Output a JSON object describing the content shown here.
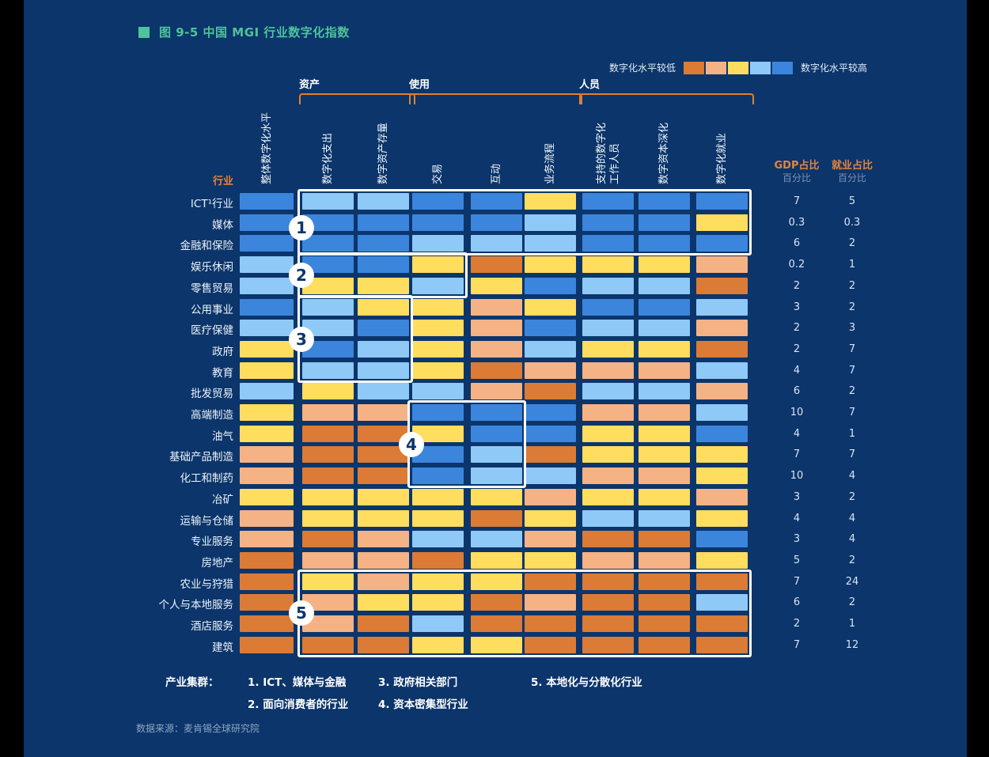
{
  "title": {
    "text": "图 9-5 中国 MGI 行业数字化指数"
  },
  "legend": {
    "low_label": "数字化水平较低",
    "high_label": "数字化水平较高",
    "scale_colors": [
      "#DB7B35",
      "#F5B285",
      "#FFDD5E",
      "#8FC9F7",
      "#3C85DC"
    ]
  },
  "columns": {
    "industries_label": "行业",
    "groups": [
      {
        "label": "资产",
        "cols": [
          2,
          3
        ]
      },
      {
        "label": "使用",
        "cols": [
          4,
          6
        ]
      },
      {
        "label": "人员",
        "cols": [
          7,
          9
        ]
      }
    ],
    "headers": [
      "整体数字化水平",
      "数字化支出",
      "数字资产存量",
      "交易",
      "互动",
      "业务流程",
      "支持的数字化\n工作人员",
      "数字资本深化",
      "数字化就业"
    ],
    "right_columns": [
      {
        "label": "GDP占比",
        "sublabel": "百分比"
      },
      {
        "label": "就业占比",
        "sublabel": "百分比"
      }
    ]
  },
  "chart_data": {
    "type": "heatmap",
    "title": "图 9-5 中国 MGI 行业数字化指数",
    "legend": "1 = 数字化水平较低(深橙) … 5 = 数字化水平较高(蓝)",
    "palette": {
      "1": "#DB7B35",
      "2": "#F5B285",
      "3": "#FFDD5E",
      "4": "#8FC9F7",
      "5": "#3C85DC"
    },
    "columns": [
      "整体数字化水平",
      "数字化支出",
      "数字资产存量",
      "交易",
      "互动",
      "业务流程",
      "支持的数字化工作人员",
      "数字资本深化",
      "数字化就业"
    ],
    "rows": [
      {
        "industry": "ICT¹行业",
        "values": [
          5,
          4,
          4,
          5,
          5,
          3,
          5,
          5,
          5
        ],
        "gdp_share": "7",
        "employment_share": "5"
      },
      {
        "industry": "媒体",
        "values": [
          5,
          5,
          5,
          5,
          5,
          4,
          5,
          5,
          3
        ],
        "gdp_share": "0.3",
        "employment_share": "0.3"
      },
      {
        "industry": "金融和保险",
        "values": [
          5,
          5,
          5,
          4,
          4,
          4,
          5,
          5,
          5
        ],
        "gdp_share": "6",
        "employment_share": "2"
      },
      {
        "industry": "娱乐休闲",
        "values": [
          4,
          5,
          5,
          3,
          1,
          3,
          3,
          3,
          2
        ],
        "gdp_share": "0.2",
        "employment_share": "1"
      },
      {
        "industry": "零售贸易",
        "values": [
          4,
          3,
          3,
          4,
          3,
          5,
          4,
          4,
          1
        ],
        "gdp_share": "2",
        "employment_share": "2"
      },
      {
        "industry": "公用事业",
        "values": [
          5,
          4,
          3,
          3,
          2,
          3,
          5,
          5,
          4
        ],
        "gdp_share": "3",
        "employment_share": "2"
      },
      {
        "industry": "医疗保健",
        "values": [
          4,
          4,
          5,
          3,
          2,
          5,
          4,
          4,
          2
        ],
        "gdp_share": "2",
        "employment_share": "3"
      },
      {
        "industry": "政府",
        "values": [
          3,
          5,
          4,
          3,
          2,
          4,
          3,
          3,
          1
        ],
        "gdp_share": "2",
        "employment_share": "7"
      },
      {
        "industry": "教育",
        "values": [
          3,
          4,
          4,
          3,
          1,
          2,
          2,
          2,
          4
        ],
        "gdp_share": "4",
        "employment_share": "7"
      },
      {
        "industry": "批发贸易",
        "values": [
          4,
          3,
          4,
          4,
          2,
          1,
          4,
          4,
          2
        ],
        "gdp_share": "6",
        "employment_share": "2"
      },
      {
        "industry": "高端制造",
        "values": [
          3,
          2,
          2,
          5,
          5,
          5,
          2,
          2,
          4
        ],
        "gdp_share": "10",
        "employment_share": "7"
      },
      {
        "industry": "油气",
        "values": [
          3,
          1,
          1,
          3,
          5,
          5,
          3,
          3,
          5
        ],
        "gdp_share": "4",
        "employment_share": "1"
      },
      {
        "industry": "基础产品制造",
        "values": [
          2,
          1,
          1,
          5,
          4,
          1,
          3,
          3,
          3
        ],
        "gdp_share": "7",
        "employment_share": "7"
      },
      {
        "industry": "化工和制药",
        "values": [
          2,
          1,
          1,
          5,
          4,
          4,
          2,
          2,
          3
        ],
        "gdp_share": "10",
        "employment_share": "4"
      },
      {
        "industry": "冶矿",
        "values": [
          3,
          3,
          3,
          3,
          3,
          2,
          3,
          3,
          2
        ],
        "gdp_share": "3",
        "employment_share": "2"
      },
      {
        "industry": "运输与仓储",
        "values": [
          2,
          3,
          3,
          3,
          1,
          3,
          4,
          4,
          3
        ],
        "gdp_share": "4",
        "employment_share": "4"
      },
      {
        "industry": "专业服务",
        "values": [
          2,
          1,
          2,
          4,
          4,
          2,
          1,
          1,
          5
        ],
        "gdp_share": "3",
        "employment_share": "4"
      },
      {
        "industry": "房地产",
        "values": [
          1,
          2,
          2,
          1,
          3,
          3,
          2,
          2,
          3
        ],
        "gdp_share": "5",
        "employment_share": "2"
      },
      {
        "industry": "农业与狩猎",
        "values": [
          1,
          3,
          2,
          3,
          3,
          1,
          1,
          1,
          1
        ],
        "gdp_share": "7",
        "employment_share": "24"
      },
      {
        "industry": "个人与本地服务",
        "values": [
          1,
          2,
          3,
          3,
          1,
          2,
          1,
          1,
          4
        ],
        "gdp_share": "6",
        "employment_share": "2"
      },
      {
        "industry": "酒店服务",
        "values": [
          1,
          2,
          1,
          4,
          1,
          1,
          1,
          1,
          1
        ],
        "gdp_share": "2",
        "employment_share": "1"
      },
      {
        "industry": "建筑",
        "values": [
          1,
          1,
          1,
          3,
          3,
          1,
          1,
          1,
          1
        ],
        "gdp_share": "7",
        "employment_share": "12"
      }
    ],
    "cluster_boxes": [
      {
        "num": "1",
        "rows": [
          1,
          3
        ],
        "cols": [
          2,
          9
        ]
      },
      {
        "num": "2",
        "rows": [
          4,
          5
        ],
        "cols": [
          2,
          4
        ]
      },
      {
        "num": "3",
        "rows": [
          6,
          9
        ],
        "cols": [
          2,
          3
        ]
      },
      {
        "num": "4",
        "rows": [
          11,
          14
        ],
        "cols": [
          4,
          5
        ]
      },
      {
        "num": "5",
        "rows": [
          19,
          22
        ],
        "cols": [
          2,
          9
        ]
      }
    ]
  },
  "clusters": {
    "heading": "产业集群：",
    "items": [
      {
        "num": "1",
        "label": "1. ICT、媒体与金融"
      },
      {
        "num": "2",
        "label": "2. 面向消费者的行业"
      },
      {
        "num": "3",
        "label": "3. 政府相关部门"
      },
      {
        "num": "4",
        "label": "4. 资本密集型行业"
      },
      {
        "num": "5",
        "label": "5. 本地化与分散化行业"
      }
    ]
  },
  "source": "数据来源：麦肯锡全球研究院"
}
